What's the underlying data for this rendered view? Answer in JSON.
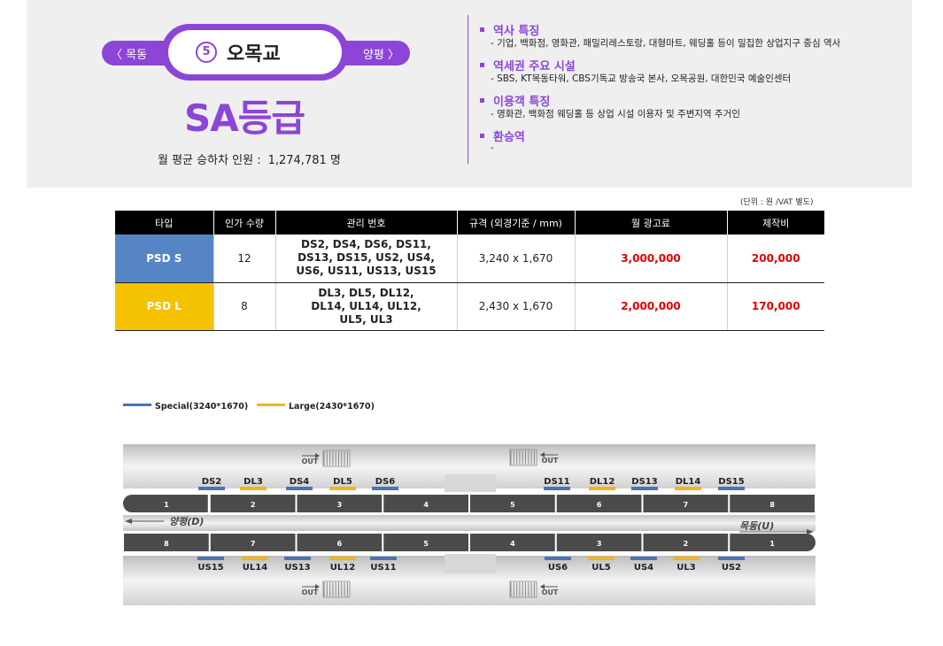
{
  "header": {
    "prev_station": "〈 목동",
    "next_station": "양평 〉",
    "line_number": "5",
    "station_name": "오목교",
    "grade": "SA등급",
    "riders_label": "월 평균 승하차 인원 :",
    "riders_value": "1,274,781 명",
    "line_color": "#8c45d6"
  },
  "info": [
    {
      "title": "역사 특징",
      "lines": [
        "-   기업, 백화점, 영화관, 패밀리레스토랑, 대형마트, 웨딩홀 등이 밀집한 상업지구 중심 역사"
      ]
    },
    {
      "title": "역세권 주요 시설",
      "lines": [
        "-   SBS, KT목동타워, CBS기독교 방송국 본사, 오목공원, 대한민국 예술인센터"
      ]
    },
    {
      "title": "이용객 특징",
      "lines": [
        "-   영화관, 백화점 웨딩홀 등 상업 시설 이용자 및 주변지역 주거인"
      ]
    },
    {
      "title": "환승역",
      "lines": [
        "-"
      ]
    }
  ],
  "table": {
    "unit_note": "(단위 : 원 /VAT 별도)",
    "headers": [
      "타입",
      "인가 수량",
      "관리 번호",
      "규격 (외경기준 / mm)",
      "월 광고료",
      "제작비"
    ],
    "rows": [
      {
        "type": "PSD S",
        "qty": "12",
        "ids": "DS2, DS4, DS6, DS11, DS13, DS15, US2, US4, US6, US11, US13, US15",
        "size": "3,240 x 1,670",
        "monthly": "3,000,000",
        "production": "200,000"
      },
      {
        "type": "PSD L",
        "qty": "8",
        "ids": "DL3, DL5, DL12, DL14, UL14, UL12, UL5, UL3",
        "size": "2,430 x 1,670",
        "monthly": "2,000,000",
        "production": "170,000"
      }
    ],
    "colors": {
      "special": "#5585c5",
      "large": "#f5c200",
      "price": "#e00000"
    }
  },
  "legend": {
    "special": "Special(3240*1670)",
    "large": "Large(2430*1670)"
  },
  "diagram": {
    "out_label": "OUT",
    "top_labels": [
      "DS2",
      "DL3",
      "DS4",
      "DL5",
      "DS6",
      "DS11",
      "DL12",
      "DS13",
      "DL14",
      "DS15"
    ],
    "bottom_labels": [
      "US15",
      "UL14",
      "US13",
      "UL12",
      "US11",
      "US6",
      "UL5",
      "US4",
      "UL3",
      "US2"
    ],
    "top_cars": [
      "1",
      "2",
      "3",
      "4",
      "5",
      "6",
      "7",
      "8"
    ],
    "bottom_cars": [
      "8",
      "7",
      "6",
      "5",
      "4",
      "3",
      "2",
      "1"
    ],
    "dir_down": "양평(D)",
    "dir_up": "목동(U)"
  }
}
